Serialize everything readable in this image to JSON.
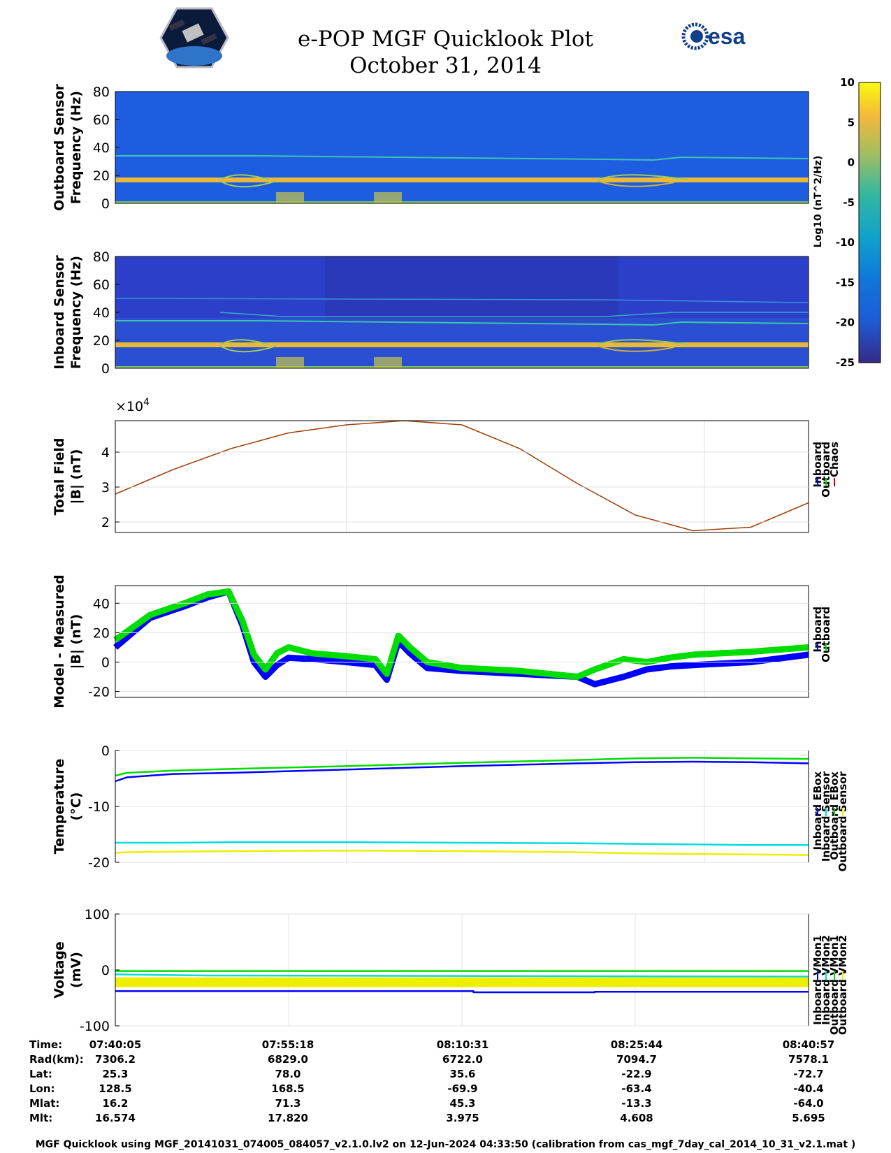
{
  "header": {
    "title_line1": "e-POP MGF Quicklook Plot",
    "title_line2": "October 31, 2014",
    "logos": [
      "cassiope-logo",
      "esa-logo"
    ],
    "esa_text": "esa"
  },
  "chart_data": [
    {
      "type": "heatmap",
      "name": "outboard-spectrogram",
      "ylabel": [
        "Outboard Sensor",
        "Frequency (Hz)"
      ],
      "ylim": [
        0,
        80
      ],
      "yticks": [
        "80",
        "60",
        "40",
        "20",
        "0"
      ],
      "colormap": "parula"
    },
    {
      "type": "heatmap",
      "name": "inboard-spectrogram",
      "ylabel": [
        "Inboard Sensor",
        "Frequency (Hz)"
      ],
      "ylim": [
        0,
        80
      ],
      "yticks": [
        "80",
        "60",
        "40",
        "20",
        "0"
      ],
      "colormap": "parula"
    },
    {
      "type": "colorbar",
      "clim": [
        -25,
        10
      ],
      "ticks": [
        "10",
        "5",
        "0",
        "-5",
        "-10",
        "-15",
        "-20",
        "-25"
      ],
      "label": "Log10 (nT^2/Hz)"
    },
    {
      "type": "line",
      "name": "total-field",
      "ylabel": [
        "Total Field",
        "|B| (nT)"
      ],
      "yexponent": "×10",
      "yexponent_power": "4",
      "ylim": [
        1.7,
        4.9
      ],
      "yticks": [
        "2",
        "3",
        "4"
      ],
      "ytick_values": [
        2,
        3,
        4
      ],
      "grid": true,
      "legend": [
        "Inboard",
        "Outboard",
        "Chaos"
      ],
      "legend_colors": [
        "#0000ff",
        "#00dd00",
        "#dd0000"
      ],
      "x": [
        0,
        5,
        10,
        15,
        20,
        25,
        30,
        35,
        40,
        45,
        50,
        55,
        60
      ],
      "series": [
        {
          "color": "#a0400a",
          "values": [
            2.8,
            3.5,
            4.1,
            4.55,
            4.78,
            4.9,
            4.78,
            4.1,
            3.1,
            2.2,
            1.75,
            1.85,
            2.55
          ]
        }
      ]
    },
    {
      "type": "line",
      "name": "model-minus-measured",
      "ylabel": [
        "Model - Measured",
        "|B| (nT)"
      ],
      "ylim": [
        -24,
        52
      ],
      "yticks": [
        "40",
        "20",
        "0",
        "-20"
      ],
      "ytick_values": [
        40,
        20,
        0,
        -20
      ],
      "grid": true,
      "legend": [
        "Inboard",
        "Outboard"
      ],
      "legend_colors": [
        "#0000ff",
        "#00dd00"
      ],
      "x": [
        0,
        3,
        6,
        8,
        9.8,
        11,
        12,
        13,
        14,
        15,
        17,
        20,
        22.5,
        23.5,
        24.5,
        25.5,
        27,
        30,
        35,
        40,
        41.5,
        44,
        46,
        48,
        50,
        55,
        60
      ],
      "series": [
        {
          "color": "#0000ff",
          "values": [
            10,
            30,
            38,
            44,
            48,
            25,
            0,
            -10,
            -2,
            3,
            2,
            0,
            -2,
            -12,
            14,
            6,
            -4,
            -6,
            -8,
            -10,
            -15,
            -10,
            -5,
            -3,
            -2,
            0,
            5
          ]
        },
        {
          "color": "#00dd00",
          "values": [
            15,
            32,
            40,
            46,
            48,
            28,
            5,
            -5,
            6,
            10,
            6,
            4,
            2,
            -8,
            18,
            10,
            0,
            -4,
            -6,
            -10,
            -5,
            2,
            0,
            3,
            5,
            7,
            10
          ]
        }
      ]
    },
    {
      "type": "line",
      "name": "temperature",
      "ylabel": [
        "Temperature",
        "(°C)"
      ],
      "ylim": [
        -20,
        0
      ],
      "yticks": [
        "0",
        "-10",
        "-20"
      ],
      "ytick_values": [
        0,
        -10,
        -20
      ],
      "grid": true,
      "legend": [
        "Inboard EBox",
        "Inboard Sensor",
        "Outboard EBox",
        "Outboard Sensor"
      ],
      "legend_colors": [
        "#0000ff",
        "#00dddd",
        "#00dd00",
        "#eeee00"
      ],
      "x": [
        0,
        1,
        5,
        10,
        20,
        30,
        40,
        45,
        50,
        55,
        60
      ],
      "series": [
        {
          "color": "#0000ff",
          "values": [
            -5.5,
            -4.8,
            -4.2,
            -4.0,
            -3.4,
            -2.8,
            -2.3,
            -2.1,
            -2.0,
            -2.1,
            -2.3
          ]
        },
        {
          "color": "#00dd00",
          "values": [
            -4.5,
            -4.0,
            -3.6,
            -3.3,
            -2.8,
            -2.2,
            -1.7,
            -1.4,
            -1.3,
            -1.4,
            -1.5
          ]
        },
        {
          "color": "#00dddd",
          "values": [
            -16.5,
            -16.5,
            -16.5,
            -16.4,
            -16.4,
            -16.5,
            -16.6,
            -16.7,
            -16.8,
            -16.9,
            -16.9
          ]
        },
        {
          "color": "#eeee00",
          "values": [
            -18.3,
            -18.2,
            -18.1,
            -18.0,
            -17.9,
            -18.0,
            -18.2,
            -18.4,
            -18.5,
            -18.6,
            -18.7
          ]
        }
      ]
    },
    {
      "type": "line",
      "name": "voltage",
      "ylabel": [
        "Voltage",
        "(mV)"
      ],
      "ylim": [
        -100,
        100
      ],
      "yticks": [
        "100",
        "0",
        "-100"
      ],
      "ytick_values": [
        100,
        0,
        -100
      ],
      "grid": true,
      "legend": [
        "Inboard VMon1",
        "Inboard VMon2",
        "Outboard VMon1",
        "Outboard VMon2"
      ],
      "legend_colors": [
        "#0000ff",
        "#00dddd",
        "#00dd00",
        "#eeee00"
      ],
      "series": [
        {
          "color": "#0000ff",
          "x": [
            0,
            31,
            31,
            41.5,
            41.5,
            60
          ],
          "values": [
            -38,
            -38,
            -40,
            -40,
            -39,
            -39
          ]
        },
        {
          "color": "#00dddd",
          "x": [
            0,
            8,
            60
          ],
          "values": [
            -8,
            -10,
            -12
          ]
        },
        {
          "color": "#00dd00",
          "x": [
            0,
            60
          ],
          "values": [
            -2,
            -2
          ]
        },
        {
          "color": "#eeee00",
          "x": [
            0,
            60
          ],
          "values": [
            -22,
            -22
          ]
        }
      ]
    }
  ],
  "ephemeris": {
    "row_labels": [
      "Time:",
      "Rad(km):",
      "Lat:",
      "Lon:",
      "Mlat:",
      "Mlt:"
    ],
    "columns": [
      [
        "07:40:05",
        "7306.2",
        "25.3",
        "128.5",
        "16.2",
        "16.574"
      ],
      [
        "07:55:18",
        "6829.0",
        "78.0",
        "168.5",
        "71.3",
        "17.820"
      ],
      [
        "08:10:31",
        "6722.0",
        "35.6",
        "-69.9",
        "45.3",
        "3.975"
      ],
      [
        "08:25:44",
        "7094.7",
        "-22.9",
        "-63.4",
        "-13.3",
        "4.608"
      ],
      [
        "08:40:57",
        "7578.1",
        "-72.7",
        "-40.4",
        "-64.0",
        "5.695"
      ]
    ]
  },
  "footer": "MGF Quicklook using MGF_20141031_074005_084057_v2.1.0.lv2 on 12-Jun-2024 04:33:50 (calibration from cas_mgf_7day_cal_2014_10_31_v2.1.mat )"
}
